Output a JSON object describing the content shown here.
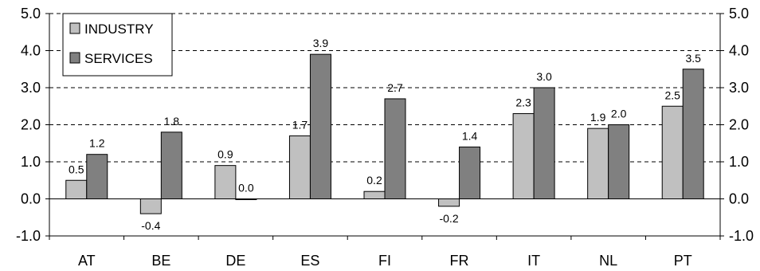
{
  "chart_data": {
    "type": "bar",
    "categories": [
      "AT",
      "BE",
      "DE",
      "ES",
      "FI",
      "FR",
      "IT",
      "NL",
      "PT"
    ],
    "series": [
      {
        "name": "INDUSTRY",
        "values": [
          0.5,
          -0.4,
          0.9,
          1.7,
          0.2,
          -0.2,
          2.3,
          1.9,
          2.5
        ],
        "labels": [
          "0.5",
          "-0.4",
          "0.9",
          "1.7",
          "0.2",
          "-0.2",
          "2.3",
          "1.9",
          "2.5"
        ],
        "color": "#c0c0c0"
      },
      {
        "name": "SERVICES",
        "values": [
          1.2,
          1.8,
          0.0,
          3.9,
          2.7,
          1.4,
          3.0,
          2.0,
          3.5
        ],
        "labels": [
          "1.2",
          "1.8",
          "0.0",
          "3.9",
          "2.7",
          "1.4",
          "3.0",
          "2.0",
          "3.5"
        ],
        "color": "#808080"
      }
    ],
    "ylim": [
      -1.0,
      5.0
    ],
    "yticks": [
      "-1.0",
      "0.0",
      "1.0",
      "2.0",
      "3.0",
      "4.0",
      "5.0"
    ],
    "grid": true,
    "legend": "top-left"
  }
}
